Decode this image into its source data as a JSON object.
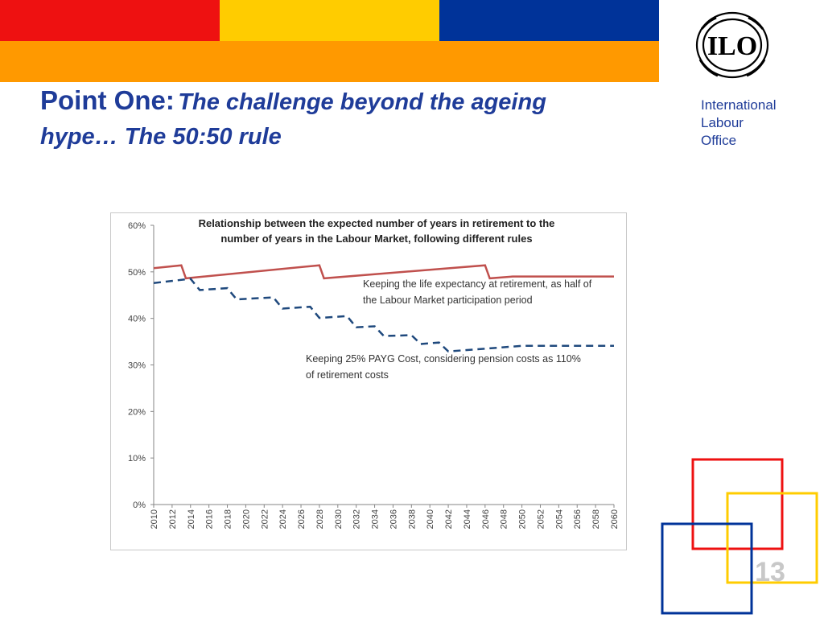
{
  "slide": {
    "title_main": "Point One:",
    "title_sub_1": "The challenge beyond the ageing",
    "title_sub_2": "hype… The 50:50 rule",
    "org_line_1": "International",
    "org_line_2": "Labour",
    "org_line_3": "Office",
    "logo_text": "ILO",
    "page_number": "13"
  },
  "colors": {
    "band_red": "#ee1111",
    "band_yellow": "#ffcc00",
    "band_blue": "#003399",
    "band_orange": "#ff9900",
    "title_blue": "#1f3c99",
    "series_red": "#c0504d",
    "series_blue": "#1f497d"
  },
  "chart_data": {
    "type": "line",
    "title": "Relationship between the expected number of years in retirement to the number of years in the Labour Market, following different rules",
    "title_line_1": "Relationship between the expected number of years in retirement to the",
    "title_line_2": "number of years in the Labour Market, following different rules",
    "xlabel": "",
    "ylabel": "",
    "ylim": [
      0,
      60
    ],
    "yticks": [
      "0%",
      "10%",
      "20%",
      "30%",
      "40%",
      "50%",
      "60%"
    ],
    "x": [
      2010,
      2012,
      2014,
      2016,
      2018,
      2020,
      2022,
      2024,
      2026,
      2028,
      2030,
      2032,
      2034,
      2036,
      2038,
      2040,
      2042,
      2044,
      2046,
      2048,
      2050,
      2052,
      2054,
      2056,
      2058,
      2060
    ],
    "grid": false,
    "legend": "none",
    "series": [
      {
        "label_line_1": "Keeping the life expectancy at retirement, as half of",
        "label_line_2": "the Labour Market participation period",
        "style": "solid",
        "points": [
          [
            2010,
            50.8
          ],
          [
            2013,
            51.4
          ],
          [
            2013.5,
            48.6
          ],
          [
            2028,
            51.4
          ],
          [
            2028.5,
            48.6
          ],
          [
            2046,
            51.4
          ],
          [
            2046.5,
            48.6
          ],
          [
            2049,
            49.0
          ],
          [
            2060,
            49.0
          ]
        ]
      },
      {
        "label_line_1": "Keeping 25% PAYG Cost, considering pension costs as 110%",
        "label_line_2": "of retirement costs",
        "style": "dashed",
        "points": [
          [
            2010,
            47.6
          ],
          [
            2014,
            48.5
          ],
          [
            2015,
            46.1
          ],
          [
            2018,
            46.5
          ],
          [
            2019,
            44.1
          ],
          [
            2023,
            44.5
          ],
          [
            2024,
            42.1
          ],
          [
            2027,
            42.5
          ],
          [
            2028,
            40.1
          ],
          [
            2031,
            40.5
          ],
          [
            2032,
            38.1
          ],
          [
            2034,
            38.3
          ],
          [
            2035,
            36.2
          ],
          [
            2038,
            36.4
          ],
          [
            2039,
            34.5
          ],
          [
            2041,
            34.8
          ],
          [
            2042,
            32.9
          ],
          [
            2046,
            33.5
          ],
          [
            2050,
            34.1
          ],
          [
            2060,
            34.1
          ]
        ]
      }
    ]
  }
}
